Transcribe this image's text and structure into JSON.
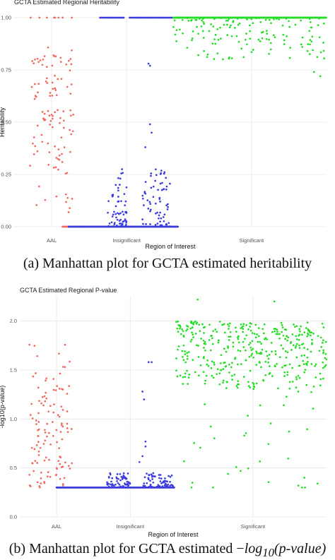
{
  "captions": {
    "a": "(a) Manhattan plot for GCTA estimated heritability",
    "b_prefix": "(b) Manhattan plot for GCTA estimated −",
    "b_log": "log",
    "b_sub": "10",
    "b_suffix": "(p-value)"
  },
  "chart_data": [
    {
      "type": "scatter",
      "title": "GCTA Estimated Regional Heritability",
      "xlabel": "Region of Interest",
      "ylabel": "Heritability",
      "ylim": [
        0,
        1
      ],
      "yticks": [
        "0.00",
        "0.25",
        "0.50",
        "0.75",
        "1.00"
      ],
      "yticks_values": [
        0,
        0.25,
        0.5,
        0.75,
        1.0
      ],
      "categories": [
        "AAL",
        "Insignificant",
        "Significant"
      ],
      "grid": true,
      "legend": "none",
      "series": [
        {
          "category": "AAL",
          "color": "#f0695e",
          "summary": "points spread 0.0–1.0, dense 0.3–0.85, several at 1.00"
        },
        {
          "category": "Insignificant",
          "color": "#3c3cdc",
          "summary": "mostly at 0.00 and 1.00, cluster 0.02–0.3, few up to 0.78"
        },
        {
          "category": "Significant",
          "color": "#22dd22",
          "summary": "dense at 1.00, spread 0.72–1.00"
        }
      ]
    },
    {
      "type": "scatter",
      "title": "GCTA Estimated Regional P-value",
      "xlabel": "Region of Interest",
      "ylabel": "-log10(p-value)",
      "ylim": [
        0,
        2.25
      ],
      "yticks": [
        "0.0",
        "0.5",
        "1.0",
        "1.5",
        "2.0"
      ],
      "yticks_values": [
        0,
        0.5,
        1.0,
        1.5,
        2.0
      ],
      "categories": [
        "AAL",
        "Insignificant",
        "Significant"
      ],
      "grid": true,
      "legend": "none",
      "series": [
        {
          "category": "AAL",
          "color": "#f0695e",
          "summary": "points 0.3–1.8, dense 0.5–1.3"
        },
        {
          "category": "Insignificant",
          "color": "#3c3cdc",
          "summary": "baseline ~0.3, cluster 0.3–0.45, few up to 1.6"
        },
        {
          "category": "Significant",
          "color": "#22dd22",
          "summary": "dense 1.4–2.0, spread 0.3–2.25"
        }
      ]
    }
  ]
}
